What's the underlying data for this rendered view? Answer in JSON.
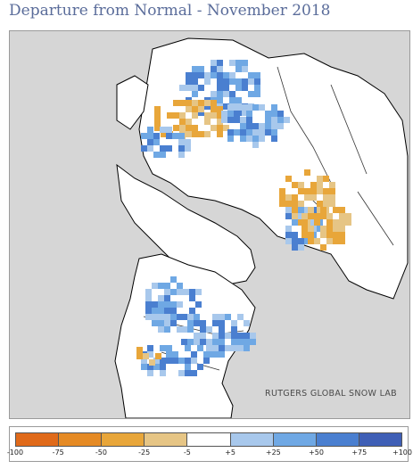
{
  "header": {
    "title": "Departure from Normal - November 2018"
  },
  "map": {
    "watermark": "RUTGERS GLOBAL SNOW LAB",
    "colors": {
      "ocean": "#d6d6d6",
      "land": "#ffffff",
      "coast": "#000000",
      "border": "#333333"
    }
  },
  "legend": {
    "colors": [
      "#e06a1a",
      "#e58a24",
      "#e8a63a",
      "#e6c585",
      "#ffffff",
      "#a8c8ec",
      "#6fa8e4",
      "#4a7fd0",
      "#3f5fb6"
    ],
    "labels": [
      "-100",
      "-75",
      "-50",
      "-25",
      "-5",
      "+5",
      "+25",
      "+50",
      "+75",
      "+100"
    ]
  }
}
